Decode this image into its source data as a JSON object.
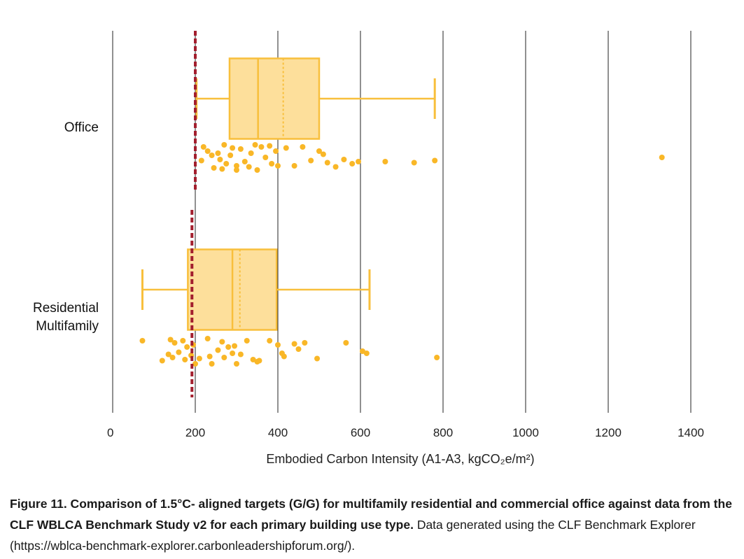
{
  "colors": {
    "box_fill": "#fddf9b",
    "box_stroke": "#f8bf3c",
    "point": "#f9b727",
    "target": "#a31f2e",
    "grid": "#222222"
  },
  "chart_data": {
    "type": "boxplot",
    "orientation": "horizontal",
    "xlabel": "Embodied Carbon Intensity (A1-A3, kgCO₂e/m²)",
    "xlim": [
      0,
      1400
    ],
    "xticks": [
      0,
      200,
      400,
      600,
      800,
      1000,
      1200,
      1400
    ],
    "grid": true,
    "categories": [
      {
        "name": "Office",
        "label_lines": [
          "Office"
        ],
        "whisker_low": 203,
        "q1": 283,
        "median": 352,
        "mean": 413,
        "q3": 500,
        "whisker_high": 780,
        "target": 200,
        "points": [
          {
            "x": 220,
            "j": -1
          },
          {
            "x": 230,
            "j": -0.6
          },
          {
            "x": 245,
            "j": 1
          },
          {
            "x": 260,
            "j": 0.2
          },
          {
            "x": 270,
            "j": -1.2
          },
          {
            "x": 285,
            "j": -0.2
          },
          {
            "x": 300,
            "j": 0.8
          },
          {
            "x": 310,
            "j": -0.8
          },
          {
            "x": 320,
            "j": 0.4
          },
          {
            "x": 335,
            "j": -0.4
          },
          {
            "x": 350,
            "j": 1.2
          },
          {
            "x": 360,
            "j": -1
          },
          {
            "x": 370,
            "j": 0
          },
          {
            "x": 385,
            "j": 0.6
          },
          {
            "x": 395,
            "j": -0.6
          },
          {
            "x": 255,
            "j": -0.4
          },
          {
            "x": 275,
            "j": 0.6
          },
          {
            "x": 290,
            "j": -0.9
          },
          {
            "x": 300,
            "j": 1.2
          },
          {
            "x": 330,
            "j": 0.9
          },
          {
            "x": 345,
            "j": -1.2
          },
          {
            "x": 215,
            "j": 0.3
          },
          {
            "x": 240,
            "j": -0.2
          },
          {
            "x": 265,
            "j": 1.1
          },
          {
            "x": 380,
            "j": -1.1
          },
          {
            "x": 400,
            "j": 0.8
          },
          {
            "x": 420,
            "j": -0.9
          },
          {
            "x": 440,
            "j": 0.8
          },
          {
            "x": 460,
            "j": -1
          },
          {
            "x": 480,
            "j": 0.3
          },
          {
            "x": 500,
            "j": -0.6
          },
          {
            "x": 520,
            "j": 0.5
          },
          {
            "x": 540,
            "j": 0.9
          },
          {
            "x": 560,
            "j": 0.2
          },
          {
            "x": 580,
            "j": 0.6
          },
          {
            "x": 510,
            "j": -0.3
          },
          {
            "x": 595,
            "j": 0.4
          },
          {
            "x": 660,
            "j": 0.4
          },
          {
            "x": 730,
            "j": 0.5
          },
          {
            "x": 780,
            "j": 0.3
          },
          {
            "x": 1330,
            "j": 0
          }
        ]
      },
      {
        "name": "Residential Multifamily",
        "label_lines": [
          "Residential",
          "Multifamily"
        ],
        "whisker_low": 72,
        "q1": 182,
        "median": 290,
        "mean": 308,
        "q3": 397,
        "whisker_high": 622,
        "target": 192,
        "points": [
          {
            "x": 72,
            "j": -1
          },
          {
            "x": 120,
            "j": 0.9
          },
          {
            "x": 135,
            "j": 0.3
          },
          {
            "x": 140,
            "j": -1.1
          },
          {
            "x": 145,
            "j": 0.6
          },
          {
            "x": 150,
            "j": -0.8
          },
          {
            "x": 160,
            "j": 0.1
          },
          {
            "x": 170,
            "j": -1
          },
          {
            "x": 175,
            "j": 0.8
          },
          {
            "x": 180,
            "j": -0.4
          },
          {
            "x": 190,
            "j": 0.4
          },
          {
            "x": 195,
            "j": -0.6
          },
          {
            "x": 200,
            "j": 1.2
          },
          {
            "x": 210,
            "j": 0.7
          },
          {
            "x": 230,
            "j": -1.2
          },
          {
            "x": 235,
            "j": 0.5
          },
          {
            "x": 240,
            "j": 1.2
          },
          {
            "x": 255,
            "j": -0.1
          },
          {
            "x": 265,
            "j": -0.9
          },
          {
            "x": 270,
            "j": 0.6
          },
          {
            "x": 280,
            "j": -0.4
          },
          {
            "x": 290,
            "j": 0.2
          },
          {
            "x": 295,
            "j": -0.5
          },
          {
            "x": 300,
            "j": 1.2
          },
          {
            "x": 310,
            "j": 0.3
          },
          {
            "x": 325,
            "j": -1
          },
          {
            "x": 340,
            "j": 0.8
          },
          {
            "x": 350,
            "j": 1
          },
          {
            "x": 355,
            "j": 0.9
          },
          {
            "x": 380,
            "j": -1
          },
          {
            "x": 400,
            "j": -0.6
          },
          {
            "x": 410,
            "j": 0.2
          },
          {
            "x": 415,
            "j": 0.5
          },
          {
            "x": 440,
            "j": -0.7
          },
          {
            "x": 450,
            "j": -0.2
          },
          {
            "x": 465,
            "j": -0.8
          },
          {
            "x": 495,
            "j": 0.7
          },
          {
            "x": 565,
            "j": -0.8
          },
          {
            "x": 605,
            "j": 0
          },
          {
            "x": 615,
            "j": 0.2
          },
          {
            "x": 785,
            "j": 0.6
          }
        ]
      }
    ]
  },
  "caption": {
    "bold": "Figure 11. Comparison of 1.5°C- aligned targets (G/G) for multifamily residential and commercial office against data from the CLF WBLCA Benchmark Study v2 for each primary building use type.",
    "normal": " Data generated using the CLF Benchmark Explorer (https://wblca-benchmark-explorer.carbonleadershipforum.org/)."
  }
}
